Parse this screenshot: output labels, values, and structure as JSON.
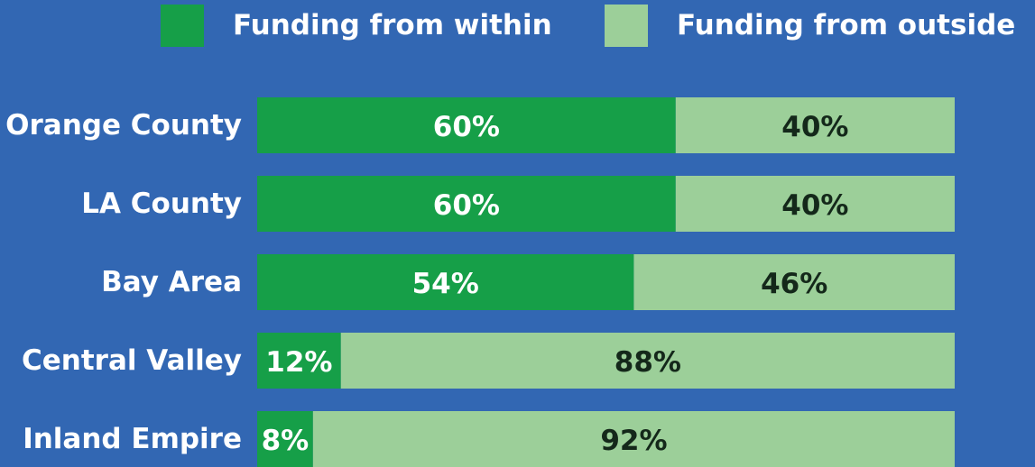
{
  "chart_data": {
    "type": "bar",
    "orientation": "horizontal",
    "stacked": true,
    "categories": [
      "Orange County",
      "LA County",
      "Bay Area",
      "Central Valley",
      "Inland Empire"
    ],
    "series": [
      {
        "name": "Funding from within",
        "color": "#169f48",
        "label_color": "#ffffff",
        "values": [
          60,
          60,
          54,
          12,
          8
        ],
        "value_labels": [
          "60%",
          "60%",
          "54%",
          "12%",
          "8%"
        ]
      },
      {
        "name": "Funding from outside",
        "color": "#9ccf99",
        "label_color": "#14281a",
        "values": [
          40,
          40,
          46,
          88,
          92
        ],
        "value_labels": [
          "40%",
          "40%",
          "46%",
          "88%",
          "92%"
        ]
      }
    ],
    "xlim": [
      0,
      100
    ],
    "legend": "top",
    "background": "#3267b3"
  }
}
